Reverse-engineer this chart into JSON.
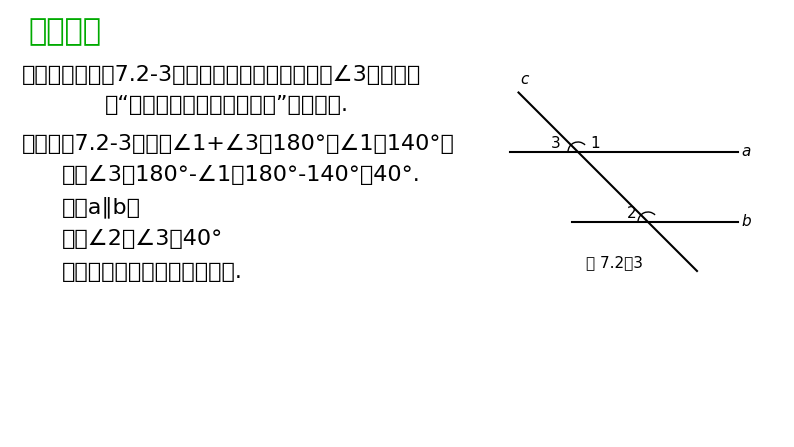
{
  "bg_color": "#ffffff",
  "title": "感悟新知",
  "title_color": "#00aa00",
  "title_fontsize": 22,
  "line1": "解题秘方：如图7.2-3，先利用邻补角的定义求得∠3，然后紧",
  "line2": "扎“两直线平行，同位角相等”解答即可.",
  "line3": "解：如图7.2-3，因为∠1+∠3＝180°，∠1＝140°，",
  "line4": "所以∠3＝180°-∠1＝180°-140°＝40°.",
  "line5": "因为a∥b，",
  "line6": "所以∠2＝∠3＝40°",
  "line7": "（两直线平行，同位角相等）.",
  "text_color": "#000000",
  "main_fontsize": 16,
  "fig_caption": "图 7.2％3"
}
